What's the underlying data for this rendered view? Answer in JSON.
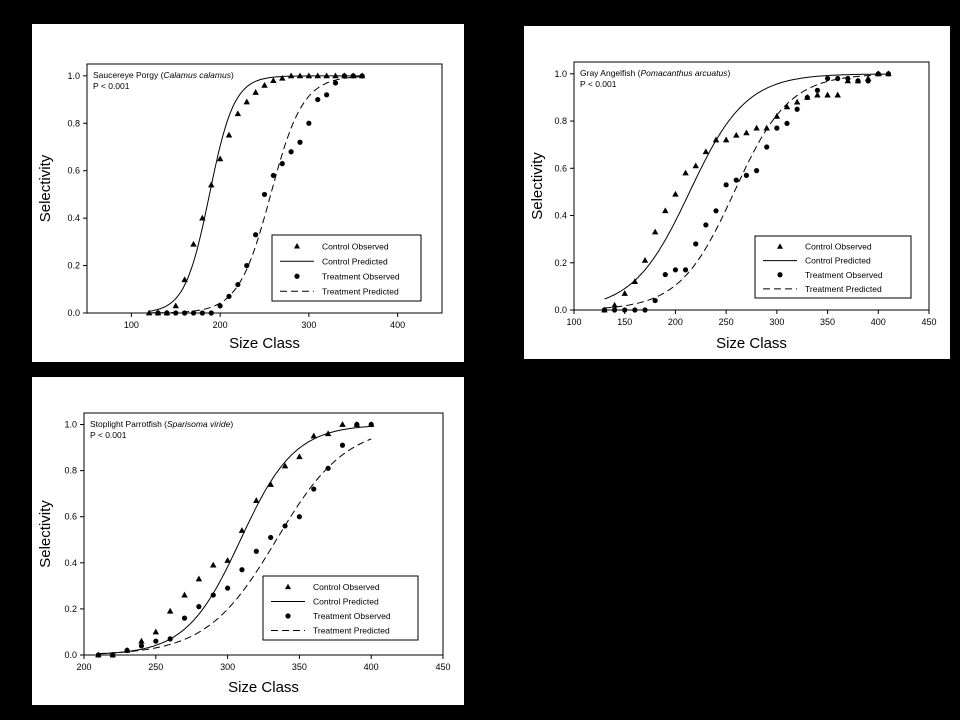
{
  "chart_data": [
    {
      "type": "scatter",
      "title_common": "Saucereye Porgy (",
      "title_sci": "Calamus calamus",
      "title_close": ")",
      "pvalue": "P < 0.001",
      "xlabel": "Size Class",
      "ylabel": "Selectivity",
      "xlim": [
        50,
        450
      ],
      "ylim": [
        0,
        1.05
      ],
      "xticks": [
        100,
        200,
        300,
        400
      ],
      "yticks": [
        "0.0",
        "0.2",
        "0.4",
        "0.6",
        "0.8",
        "1.0"
      ],
      "legend": [
        "Control Observed",
        "Control Predicted",
        "Treatment Observed",
        "Treatment Predicted"
      ],
      "legend_position": "bottom-right",
      "series": [
        {
          "name": "Control Observed",
          "marker": "triangle",
          "x": [
            120,
            130,
            140,
            150,
            160,
            170,
            180,
            190,
            200,
            210,
            220,
            230,
            240,
            250,
            260,
            270,
            280,
            290,
            300,
            310,
            320,
            330,
            340,
            350,
            360
          ],
          "y": [
            0.0,
            0.0,
            0.0,
            0.03,
            0.14,
            0.29,
            0.4,
            0.54,
            0.65,
            0.75,
            0.84,
            0.89,
            0.93,
            0.96,
            0.98,
            0.99,
            1.0,
            1.0,
            1.0,
            1.0,
            1.0,
            1.0,
            1.0,
            1.0,
            1.0
          ]
        },
        {
          "name": "Treatment Observed",
          "marker": "circle",
          "x": [
            130,
            140,
            150,
            160,
            170,
            180,
            190,
            200,
            210,
            220,
            230,
            240,
            250,
            260,
            270,
            280,
            290,
            300,
            310,
            320,
            330,
            340,
            350,
            360
          ],
          "y": [
            0.0,
            0.0,
            0.0,
            0.0,
            0.0,
            0.0,
            0.0,
            0.03,
            0.07,
            0.12,
            0.2,
            0.33,
            0.5,
            0.58,
            0.63,
            0.68,
            0.72,
            0.8,
            0.9,
            0.92,
            0.97,
            1.0,
            1.0,
            1.0
          ]
        },
        {
          "name": "Control Predicted",
          "style": "solid",
          "fit": {
            "x0": 188,
            "k": 0.072,
            "xmin": 120,
            "xmax": 360
          }
        },
        {
          "name": "Treatment Predicted",
          "style": "dashed",
          "fit": {
            "x0": 257,
            "k": 0.055,
            "xmin": 120,
            "xmax": 360
          }
        }
      ]
    },
    {
      "type": "scatter",
      "title_common": "Gray Angelfish (",
      "title_sci": "Pomacanthus arcuatus",
      "title_close": ")",
      "pvalue": "P < 0.001",
      "xlabel": "Size Class",
      "ylabel": "Selectivity",
      "xlim": [
        100,
        450
      ],
      "ylim": [
        0,
        1.05
      ],
      "xticks": [
        100,
        150,
        200,
        250,
        300,
        350,
        400,
        450
      ],
      "yticks": [
        "0.0",
        "0.2",
        "0.4",
        "0.6",
        "0.8",
        "1.0"
      ],
      "legend": [
        "Control Observed",
        "Control Predicted",
        "Treatment Observed",
        "Treatment Predicted"
      ],
      "legend_position": "bottom-right",
      "series": [
        {
          "name": "Control Observed",
          "marker": "triangle",
          "x": [
            130,
            140,
            150,
            160,
            170,
            180,
            190,
            200,
            210,
            220,
            230,
            240,
            250,
            260,
            270,
            280,
            290,
            300,
            310,
            320,
            330,
            340,
            350,
            360,
            370,
            380,
            390,
            400,
            410
          ],
          "y": [
            0.0,
            0.02,
            0.07,
            0.12,
            0.21,
            0.33,
            0.42,
            0.49,
            0.58,
            0.61,
            0.67,
            0.72,
            0.72,
            0.74,
            0.75,
            0.77,
            0.77,
            0.82,
            0.86,
            0.88,
            0.9,
            0.91,
            0.91,
            0.91,
            0.97,
            0.97,
            0.98,
            1.0,
            1.0
          ]
        },
        {
          "name": "Treatment Observed",
          "marker": "circle",
          "x": [
            130,
            140,
            150,
            160,
            170,
            180,
            190,
            200,
            210,
            220,
            230,
            240,
            250,
            260,
            270,
            280,
            290,
            300,
            310,
            320,
            330,
            340,
            350,
            360,
            370,
            380,
            390,
            400,
            410
          ],
          "y": [
            0.0,
            0.0,
            0.0,
            0.0,
            0.0,
            0.04,
            0.15,
            0.17,
            0.17,
            0.28,
            0.36,
            0.42,
            0.53,
            0.55,
            0.57,
            0.59,
            0.69,
            0.77,
            0.79,
            0.85,
            0.9,
            0.93,
            0.98,
            0.98,
            0.98,
            0.97,
            0.97,
            1.0,
            1.0
          ]
        },
        {
          "name": "Control Predicted",
          "style": "solid",
          "fit": {
            "x0": 214,
            "k": 0.036,
            "xmin": 130,
            "xmax": 410
          }
        },
        {
          "name": "Treatment Predicted",
          "style": "dashed",
          "fit": {
            "x0": 258,
            "k": 0.037,
            "xmin": 130,
            "xmax": 410
          }
        }
      ]
    },
    {
      "type": "scatter",
      "title_common": "Stoplight Parrotfish (",
      "title_sci": "Sparisoma viride",
      "title_close": ")",
      "pvalue": "P < 0.001",
      "xlabel": "Size Class",
      "ylabel": "Selectivity",
      "xlim": [
        200,
        450
      ],
      "ylim": [
        0,
        1.05
      ],
      "xticks": [
        200,
        250,
        300,
        350,
        400,
        450
      ],
      "yticks": [
        "0.0",
        "0.2",
        "0.4",
        "0.6",
        "0.8",
        "1.0"
      ],
      "legend": [
        "Control Observed",
        "Control Predicted",
        "Treatment Observed",
        "Treatment Predicted"
      ],
      "legend_position": "bottom-right",
      "series": [
        {
          "name": "Control Observed",
          "marker": "triangle",
          "x": [
            210,
            220,
            230,
            240,
            250,
            260,
            270,
            280,
            290,
            300,
            310,
            320,
            330,
            340,
            350,
            360,
            370,
            380,
            390,
            400
          ],
          "y": [
            0.0,
            0.0,
            0.02,
            0.06,
            0.1,
            0.19,
            0.26,
            0.33,
            0.39,
            0.41,
            0.54,
            0.67,
            0.74,
            0.82,
            0.86,
            0.95,
            0.96,
            1.0,
            1.0,
            1.0
          ]
        },
        {
          "name": "Treatment Observed",
          "marker": "circle",
          "x": [
            210,
            220,
            230,
            240,
            250,
            260,
            270,
            280,
            290,
            300,
            310,
            320,
            330,
            340,
            350,
            360,
            370,
            380,
            390,
            400
          ],
          "y": [
            0.0,
            0.0,
            0.02,
            0.04,
            0.06,
            0.07,
            0.16,
            0.21,
            0.26,
            0.29,
            0.37,
            0.45,
            0.51,
            0.56,
            0.6,
            0.72,
            0.81,
            0.91,
            1.0,
            1.0
          ]
        },
        {
          "name": "Control Predicted",
          "style": "solid",
          "fit": {
            "x0": 309,
            "k": 0.053,
            "xmin": 210,
            "xmax": 400
          }
        },
        {
          "name": "Treatment Predicted",
          "style": "dashed",
          "fit": {
            "x0": 334,
            "k": 0.041,
            "xmin": 210,
            "xmax": 400
          }
        }
      ]
    }
  ]
}
